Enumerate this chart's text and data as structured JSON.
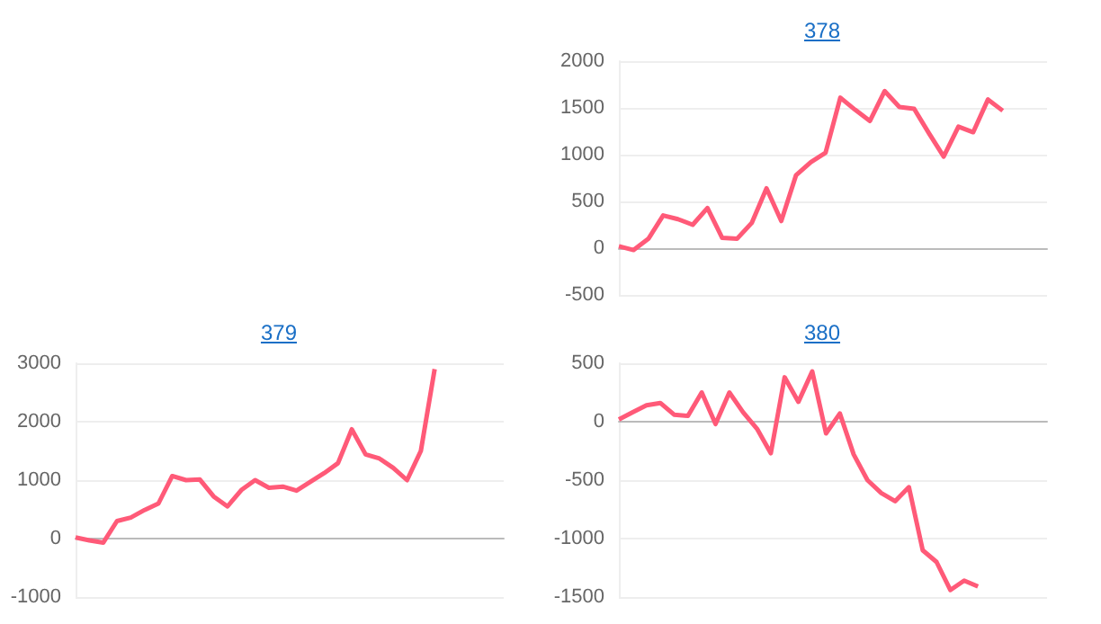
{
  "chart_data": [
    {
      "type": "line",
      "title": "378",
      "categories": [
        null,
        null,
        null,
        null,
        null,
        null,
        null,
        null,
        null,
        null,
        null,
        null,
        null,
        null,
        null,
        null,
        null,
        null,
        null,
        null,
        null,
        null,
        null,
        null,
        null,
        null,
        null,
        null,
        null,
        null
      ],
      "series": [
        {
          "color": "#ff5a78",
          "values": [
            20,
            -20,
            100,
            350,
            310,
            250,
            430,
            110,
            100,
            270,
            640,
            290,
            780,
            920,
            1020,
            1610,
            1480,
            1360,
            1680,
            1510,
            1490,
            1230,
            980,
            1300,
            1240,
            1590,
            1470,
            null,
            null,
            null
          ]
        }
      ],
      "ylim": [
        -500,
        2000
      ],
      "yticks": [
        -500,
        0,
        500,
        1000,
        1500,
        2000
      ],
      "grid": "y",
      "tick_labels": "y",
      "line_style": "solid"
    },
    {
      "type": "line",
      "title": "379",
      "categories": [
        null,
        null,
        null,
        null,
        null,
        null,
        null,
        null,
        null,
        null,
        null,
        null,
        null,
        null,
        null,
        null,
        null,
        null,
        null,
        null,
        null,
        null,
        null,
        null,
        null,
        null,
        null,
        null,
        null,
        null,
        null,
        null
      ],
      "series": [
        {
          "color": "#ff5a78",
          "values": [
            20,
            -30,
            -70,
            300,
            360,
            490,
            600,
            1070,
            1000,
            1010,
            720,
            550,
            830,
            1000,
            870,
            890,
            820,
            970,
            1120,
            1290,
            1870,
            1440,
            1370,
            1210,
            1000,
            1500,
            2900,
            null,
            null,
            null,
            null,
            null
          ]
        }
      ],
      "ylim": [
        -1000,
        3000
      ],
      "yticks": [
        -1000,
        0,
        1000,
        2000,
        3000
      ],
      "grid": "y",
      "tick_labels": "y",
      "line_style": "solid"
    },
    {
      "type": "line",
      "title": "380",
      "categories": [
        null,
        null,
        null,
        null,
        null,
        null,
        null,
        null,
        null,
        null,
        null,
        null,
        null,
        null,
        null,
        null,
        null,
        null,
        null,
        null,
        null,
        null,
        null,
        null,
        null,
        null,
        null,
        null,
        null,
        null,
        null,
        null
      ],
      "series": [
        {
          "color": "#ff5a78",
          "values": [
            20,
            80,
            140,
            160,
            60,
            50,
            250,
            -20,
            250,
            80,
            -60,
            -270,
            380,
            170,
            430,
            -100,
            70,
            -280,
            -500,
            -610,
            -680,
            -560,
            -1100,
            -1200,
            -1440,
            -1360,
            -1410,
            null,
            null,
            null,
            null,
            null
          ]
        }
      ],
      "ylim": [
        -1500,
        500
      ],
      "yticks": [
        -1500,
        -1000,
        -500,
        0,
        500
      ],
      "grid": "y",
      "tick_labels": "y",
      "line_style": "solid"
    }
  ]
}
